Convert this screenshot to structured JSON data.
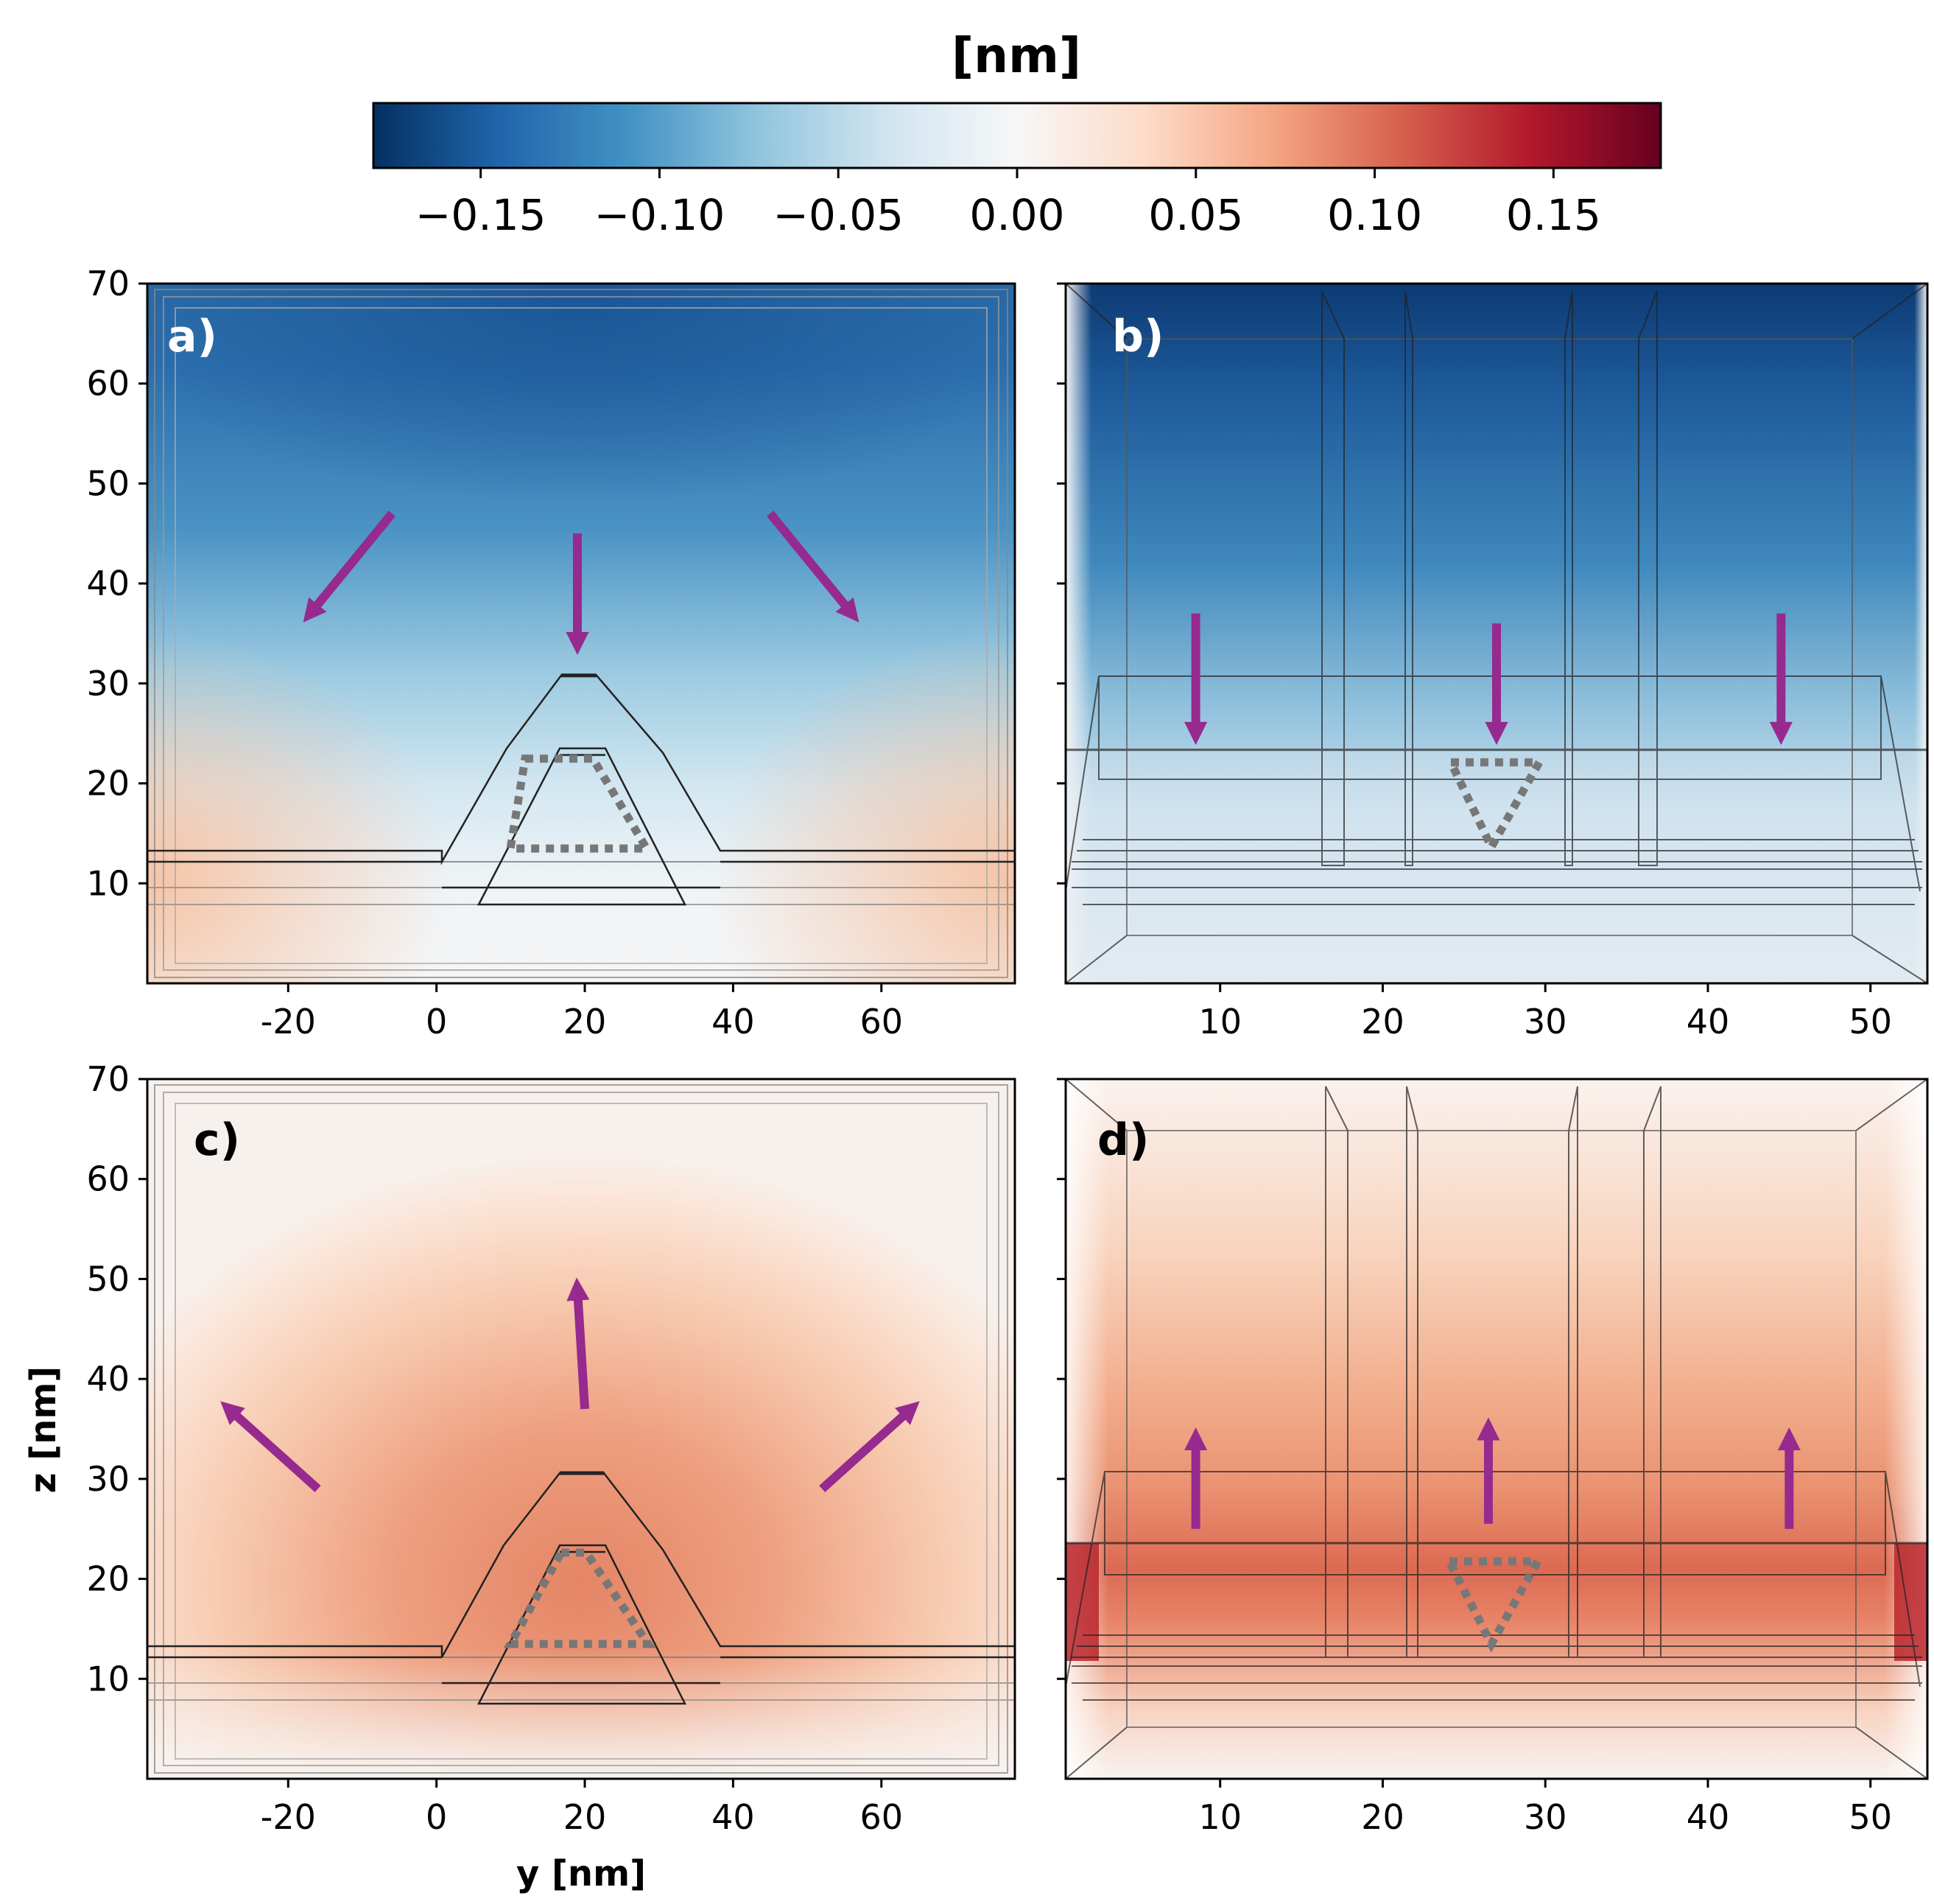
{
  "colors": {
    "arrow": "#962a8e",
    "dotted": "#7a7a7a",
    "frame": "#000000",
    "cmap": [
      "#053061",
      "#2166ac",
      "#4393c3",
      "#92c5de",
      "#d1e5f0",
      "#f7f7f7",
      "#fddbc7",
      "#f4a582",
      "#d6604d",
      "#b2182b",
      "#67001f"
    ]
  },
  "chart_data": {
    "type": "heatmap",
    "colorbar": {
      "title": "[nm]",
      "min": -0.18,
      "max": 0.18,
      "ticks": [
        -0.15,
        -0.1,
        -0.05,
        0.0,
        0.05,
        0.1,
        0.15
      ],
      "tick_labels": [
        "−0.15",
        "−0.10",
        "−0.05",
        "0.00",
        "0.05",
        "0.10",
        "0.15"
      ],
      "orientation": "horizontal",
      "placement": "top"
    },
    "xlabel": "y [nm]",
    "ylabel": "z [nm]",
    "zticks": [
      10,
      20,
      30,
      40,
      50,
      60,
      70
    ],
    "zlim": [
      0,
      70
    ],
    "panels": [
      {
        "label": "a)",
        "view": "cross-section",
        "xlim": [
          -39,
          78
        ],
        "xticks": [
          -20,
          0,
          20,
          40,
          60
        ],
        "displacement_range": [
          -0.13,
          0.03
        ],
        "dominant_sign": "negative",
        "arrows": [
          {
            "from": [
              -6,
              47
            ],
            "to": [
              -17,
              37
            ]
          },
          {
            "from": [
              19,
              45
            ],
            "to": [
              19,
              34
            ]
          },
          {
            "from": [
              45,
              47
            ],
            "to": [
              56,
              37
            ]
          }
        ]
      },
      {
        "label": "b)",
        "view": "side",
        "xlim": [
          0.5,
          53.5
        ],
        "xticks": [
          10,
          20,
          30,
          40,
          50
        ],
        "displacement_range": [
          -0.16,
          -0.01
        ],
        "dominant_sign": "negative",
        "arrows": [
          {
            "from": [
              8.5,
              37
            ],
            "to": [
              8.5,
              25
            ]
          },
          {
            "from": [
              27,
              36
            ],
            "to": [
              27,
              25
            ]
          },
          {
            "from": [
              44.5,
              37
            ],
            "to": [
              44.5,
              25
            ]
          }
        ]
      },
      {
        "label": "c)",
        "view": "cross-section",
        "xlim": [
          -39,
          78
        ],
        "xticks": [
          -20,
          0,
          20,
          40,
          60
        ],
        "displacement_range": [
          0.0,
          0.07
        ],
        "dominant_sign": "positive",
        "arrows": [
          {
            "from": [
              -16,
              29
            ],
            "to": [
              -28,
              37
            ]
          },
          {
            "from": [
              20,
              37
            ],
            "to": [
              19,
              49
            ]
          },
          {
            "from": [
              52,
              29
            ],
            "to": [
              64,
              37
            ]
          }
        ]
      },
      {
        "label": "d)",
        "view": "side",
        "xlim": [
          0.5,
          53.5
        ],
        "xticks": [
          10,
          20,
          30,
          40,
          50
        ],
        "displacement_range": [
          0.0,
          0.12
        ],
        "dominant_sign": "positive",
        "arrows": [
          {
            "from": [
              8.5,
              25
            ],
            "to": [
              8.5,
              34
            ]
          },
          {
            "from": [
              26.5,
              25.5
            ],
            "to": [
              26.5,
              35
            ]
          },
          {
            "from": [
              45,
              25
            ],
            "to": [
              45,
              34
            ]
          }
        ]
      }
    ]
  }
}
